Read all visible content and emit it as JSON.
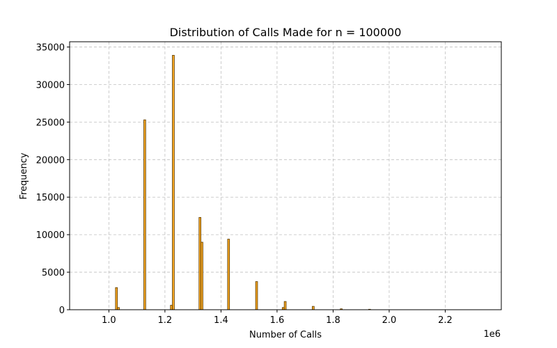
{
  "chart_data": {
    "type": "bar",
    "title": "Distribution of Calls Made for n = 100000",
    "xlabel": "Number of Calls",
    "ylabel": "Frequency",
    "x_offset_label": "1e6",
    "xlim": [
      0.86,
      2.4
    ],
    "ylim": [
      0,
      35700
    ],
    "x_ticks": [
      1.0,
      1.2,
      1.4,
      1.6,
      1.8,
      2.0,
      2.2
    ],
    "x_tick_labels": [
      "1.0",
      "1.2",
      "1.4",
      "1.6",
      "1.8",
      "2.0",
      "2.2"
    ],
    "y_ticks": [
      0,
      5000,
      10000,
      15000,
      20000,
      25000,
      30000,
      35000
    ],
    "y_tick_labels": [
      "0",
      "5000",
      "10000",
      "15000",
      "20000",
      "25000",
      "30000",
      "35000"
    ],
    "grid": true,
    "bin_width": 0.007,
    "bar_color": "#f5a623",
    "edge_color": "#5a3a00",
    "bins": [
      {
        "x": 1.027,
        "value": 2950
      },
      {
        "x": 1.034,
        "value": 300
      },
      {
        "x": 1.128,
        "value": 25300
      },
      {
        "x": 1.223,
        "value": 600
      },
      {
        "x": 1.23,
        "value": 33900
      },
      {
        "x": 1.325,
        "value": 12300
      },
      {
        "x": 1.332,
        "value": 9000
      },
      {
        "x": 1.427,
        "value": 9400
      },
      {
        "x": 1.527,
        "value": 3750
      },
      {
        "x": 1.622,
        "value": 300
      },
      {
        "x": 1.629,
        "value": 1100
      },
      {
        "x": 1.729,
        "value": 450
      },
      {
        "x": 1.829,
        "value": 120
      },
      {
        "x": 1.93,
        "value": 60
      }
    ]
  }
}
